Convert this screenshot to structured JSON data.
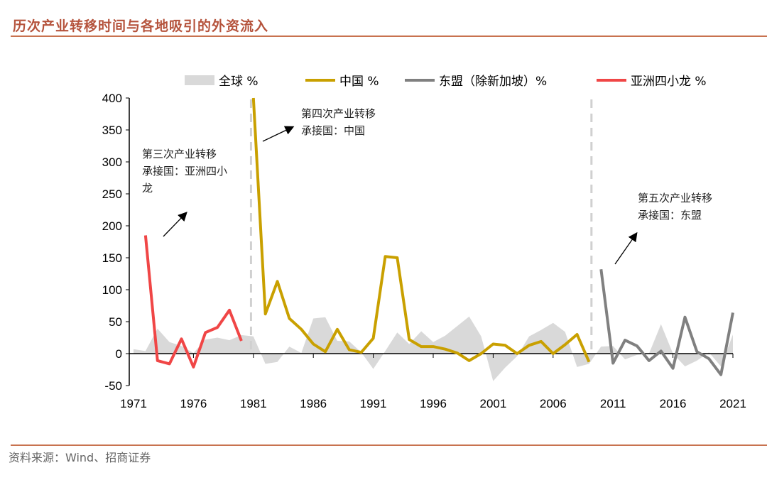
{
  "title": "历次产业转移时间与各地吸引的外资流入",
  "source": "资料来源：Wind、招商证券",
  "chart_data": {
    "type": "line",
    "title": "",
    "xlabel": "",
    "ylabel": "",
    "ylim": [
      -50,
      400
    ],
    "yticks": [
      400,
      350,
      300,
      250,
      200,
      150,
      100,
      50,
      0,
      -50
    ],
    "xlim": [
      1971,
      2021
    ],
    "xticks": [
      1971,
      1976,
      1981,
      1986,
      1991,
      1996,
      2001,
      2006,
      2011,
      2016,
      2021
    ],
    "grid": false,
    "legend_position": "top",
    "series": [
      {
        "name": "全球 %",
        "kind": "area",
        "color": "#d9d9d9",
        "x": [
          1971,
          1972,
          1973,
          1974,
          1975,
          1976,
          1977,
          1978,
          1979,
          1980,
          1981,
          1982,
          1983,
          1984,
          1985,
          1986,
          1987,
          1988,
          1989,
          1990,
          1991,
          1992,
          1993,
          1994,
          1995,
          1996,
          1997,
          1998,
          1999,
          2000,
          2001,
          2002,
          2003,
          2004,
          2005,
          2006,
          2007,
          2008,
          2009,
          2010,
          2011,
          2012,
          2013,
          2014,
          2015,
          2016,
          2017,
          2018,
          2019,
          2020,
          2021
        ],
        "values": [
          7,
          4,
          39,
          18,
          12,
          1,
          22,
          25,
          21,
          29,
          27,
          -16,
          -13,
          11,
          1,
          55,
          57,
          20,
          19,
          2,
          -24,
          4,
          33,
          15,
          35,
          18,
          28,
          43,
          58,
          27,
          -43,
          -22,
          -4,
          27,
          37,
          48,
          34,
          -21,
          -16,
          11,
          12,
          -9,
          -2,
          0,
          46,
          0,
          -20,
          -11,
          2,
          -20,
          30
        ]
      },
      {
        "name": "中国 %",
        "kind": "line",
        "color": "#c9a000",
        "x": [
          1981,
          1982,
          1983,
          1984,
          1985,
          1986,
          1987,
          1988,
          1989,
          1990,
          1991,
          1992,
          1993,
          1994,
          1995,
          1996,
          1997,
          1998,
          1999,
          2000,
          2001,
          2002,
          2003,
          2004,
          2005,
          2006,
          2007,
          2008,
          2009
        ],
        "values": [
          400,
          62,
          113,
          55,
          38,
          15,
          3,
          38,
          6,
          2,
          24,
          152,
          150,
          22,
          11,
          11,
          7,
          1,
          -11,
          0,
          15,
          13,
          0,
          13,
          19,
          0,
          14,
          30,
          -13
        ]
      },
      {
        "name": "东盟（除新加坡）%",
        "kind": "line",
        "color": "#808080",
        "x": [
          2010,
          2011,
          2012,
          2013,
          2014,
          2015,
          2016,
          2017,
          2018,
          2019,
          2020,
          2021
        ],
        "values": [
          132,
          -15,
          21,
          12,
          -11,
          4,
          -23,
          57,
          3,
          -8,
          -33,
          64
        ]
      },
      {
        "name": "亚洲四小龙 %",
        "kind": "line",
        "color": "#f04646",
        "x": [
          1972,
          1973,
          1974,
          1975,
          1976,
          1977,
          1978,
          1979,
          1980
        ],
        "values": [
          185,
          -11,
          -16,
          23,
          -21,
          33,
          41,
          68,
          20
        ]
      }
    ],
    "annotations": [
      {
        "lines": [
          "第三次产业转移",
          "承接国：亚洲四小",
          "龙"
        ]
      },
      {
        "lines": [
          "第四次产业转移",
          "承接国：中国"
        ]
      },
      {
        "lines": [
          "第五次产业转移",
          "承接国：东盟"
        ]
      }
    ],
    "dividers": [
      1980.8,
      2009.2
    ]
  }
}
